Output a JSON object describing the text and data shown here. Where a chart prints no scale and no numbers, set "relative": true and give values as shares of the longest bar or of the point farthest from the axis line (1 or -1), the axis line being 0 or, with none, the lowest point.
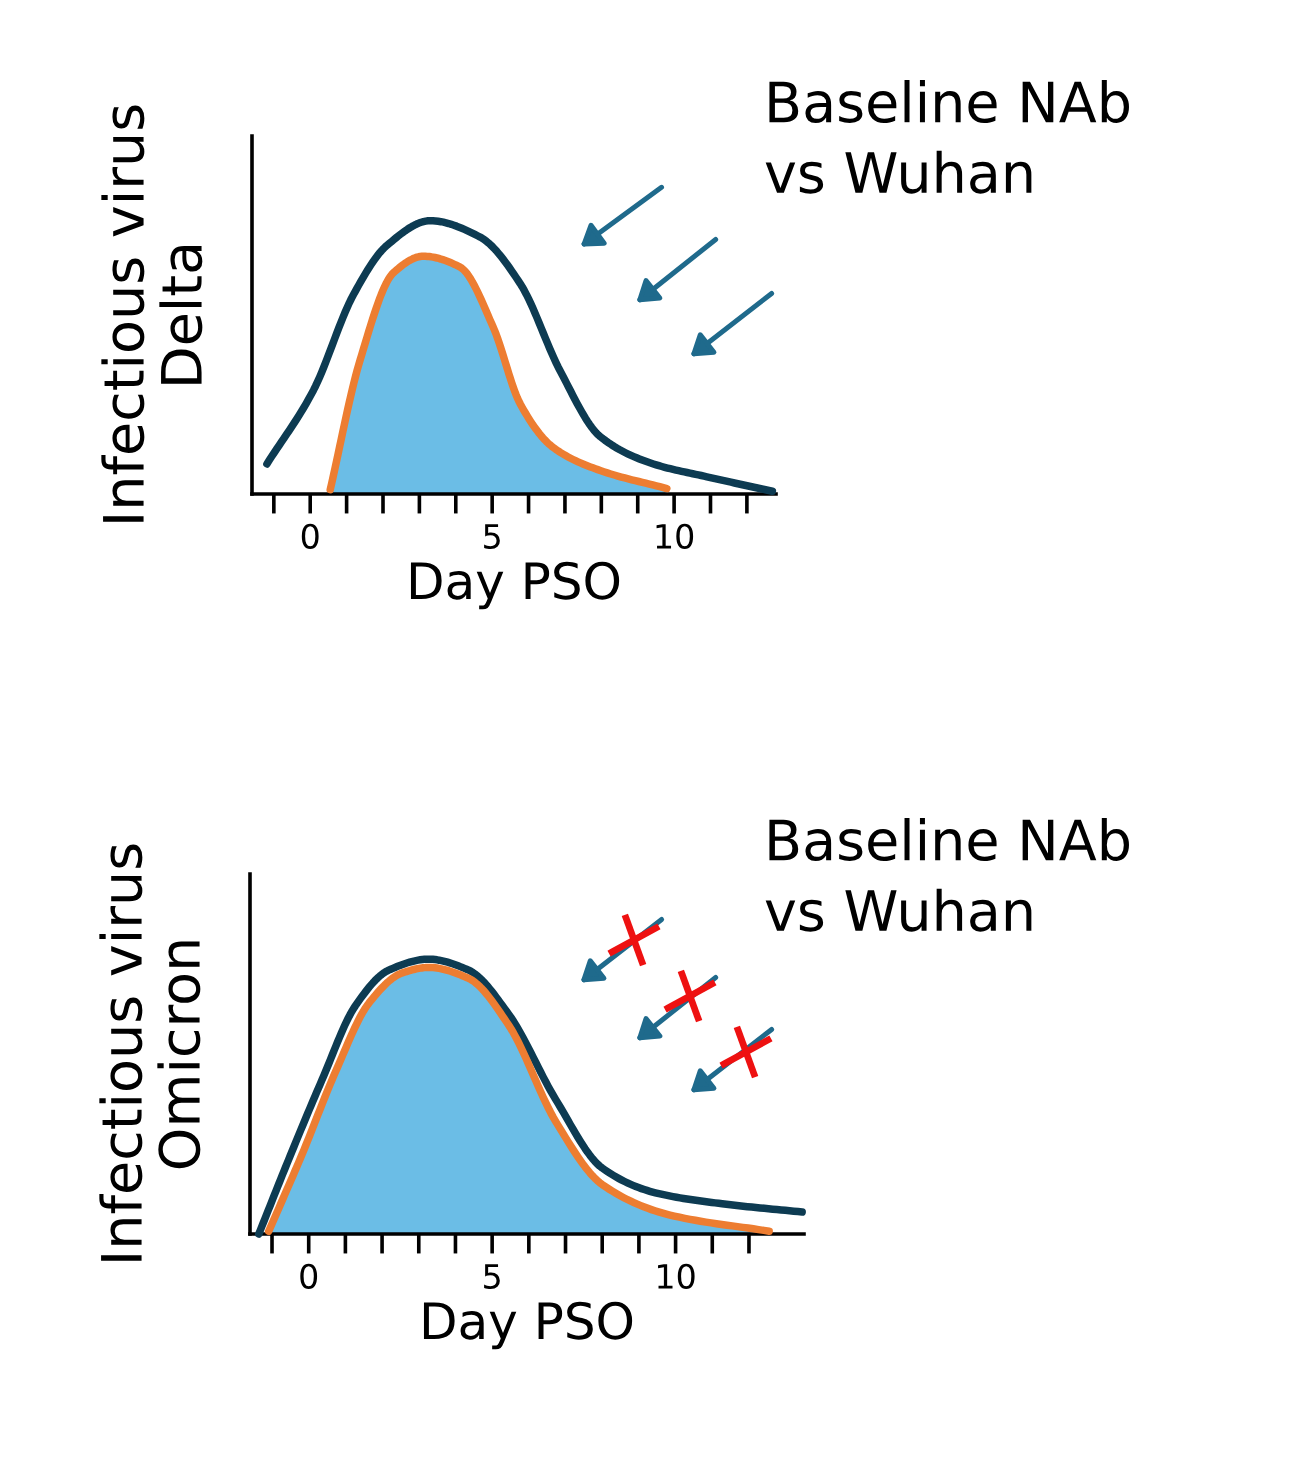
{
  "chart_data": [
    {
      "type": "line",
      "relative": true,
      "xlabel": "Day PSO",
      "ylabel": "Infectious virus\nDelta",
      "annotations": [
        "Baseline NAb\nvs Wuhan"
      ],
      "grid": false,
      "xlim": [
        -1.6,
        12.8
      ],
      "xticks": [
        {
          "value": -1,
          "label": null
        },
        0,
        {
          "value": 1,
          "label": null
        },
        {
          "value": 2,
          "label": null
        },
        {
          "value": 3,
          "label": null
        },
        {
          "value": 4,
          "label": null
        },
        5,
        {
          "value": 6,
          "label": null
        },
        {
          "value": 7,
          "label": null
        },
        {
          "value": 8,
          "label": null
        },
        {
          "value": 9,
          "label": null
        },
        10,
        {
          "value": 11,
          "label": null
        },
        {
          "value": 12,
          "label": null
        }
      ],
      "series": [
        {
          "type": "area",
          "color": "#6bbde6",
          "x": [
            0.55,
            1.37,
            2.29,
            3.11,
            4.12,
            5.03,
            5.77,
            6.68,
            7.97,
            9.8
          ],
          "values": [
            0.016,
            0.49,
            0.81,
            0.87,
            0.83,
            0.61,
            0.33,
            0.17,
            0.086,
            0.02
          ]
        },
        {
          "type": "line",
          "color": "#0d3b52",
          "x": [
            -1.19,
            0.09,
            1.19,
            2.11,
            3.3,
            4.67,
            5.77,
            6.87,
            7.97,
            9.43,
            10.9,
            12.7
          ],
          "values": [
            0.11,
            0.38,
            0.73,
            0.91,
            1.0,
            0.94,
            0.77,
            0.45,
            0.21,
            0.11,
            0.063,
            0.01
          ]
        },
        {
          "type": "line",
          "color": "#ed7d31",
          "x": [
            0.55,
            1.37,
            2.29,
            3.11,
            4.12,
            5.03,
            5.77,
            6.68,
            7.97,
            9.8
          ],
          "values": [
            0.016,
            0.49,
            0.81,
            0.87,
            0.83,
            0.61,
            0.33,
            0.17,
            0.086,
            0.02
          ]
        }
      ]
    },
    {
      "type": "line",
      "relative": true,
      "xlabel": "Day PSO",
      "ylabel": "Infectious virus\nOmicron",
      "annotations": [
        "Baseline NAb\nvs Wuhan"
      ],
      "grid": false,
      "xlim": [
        -1.6,
        13.5
      ],
      "xticks": [
        {
          "value": -1,
          "label": null
        },
        0,
        {
          "value": 1,
          "label": null
        },
        {
          "value": 2,
          "label": null
        },
        {
          "value": 3,
          "label": null
        },
        {
          "value": 4,
          "label": null
        },
        5,
        {
          "value": 6,
          "label": null
        },
        {
          "value": 7,
          "label": null
        },
        {
          "value": 8,
          "label": null
        },
        {
          "value": 9,
          "label": null
        },
        10,
        {
          "value": 11,
          "label": null
        },
        {
          "value": 12,
          "label": null
        }
      ],
      "series": [
        {
          "type": "area",
          "color": "#6bbde6",
          "x": [
            -1.09,
            -0.18,
            0.73,
            1.64,
            2.55,
            3.27,
            4.36,
            5.45,
            6.73,
            8.0,
            9.82,
            12.55
          ],
          "values": [
            0.01,
            0.29,
            0.59,
            0.84,
            0.95,
            0.97,
            0.93,
            0.76,
            0.41,
            0.18,
            0.07,
            0.01
          ]
        },
        {
          "type": "line",
          "color": "#0d3b52",
          "x": [
            -1.36,
            -0.55,
            0.36,
            1.27,
            2.18,
            3.27,
            4.36,
            5.45,
            6.73,
            8.0,
            9.45,
            11.27,
            13.45
          ],
          "values": [
            0,
            0.27,
            0.56,
            0.83,
            0.96,
            1.0,
            0.96,
            0.8,
            0.49,
            0.24,
            0.15,
            0.11,
            0.08
          ]
        },
        {
          "type": "line",
          "color": "#ed7d31",
          "x": [
            -1.09,
            -0.18,
            0.73,
            1.64,
            2.55,
            3.27,
            4.36,
            5.45,
            6.73,
            8.0,
            9.82,
            12.55
          ],
          "values": [
            0.01,
            0.29,
            0.59,
            0.84,
            0.95,
            0.97,
            0.93,
            0.76,
            0.41,
            0.18,
            0.07,
            0.01
          ]
        }
      ]
    }
  ]
}
